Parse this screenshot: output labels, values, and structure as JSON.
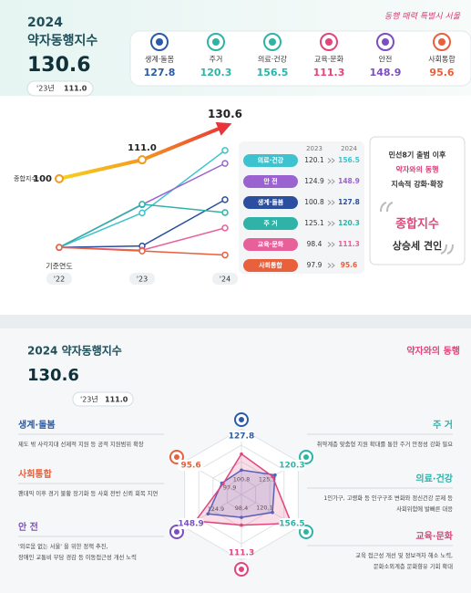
{
  "header": {
    "year": "2024",
    "title": "약자동행지수",
    "full_title": "2024 약자동행지수",
    "prev_label": "'23년",
    "slogan": "동행 매력 특별시 서울",
    "badge": "약자와의 동행",
    "cards": [
      "생계·돌봄",
      "주거",
      "의료·건강",
      "교육·문화",
      "안전",
      "사회통합"
    ]
  },
  "callout": [
    "민선8기 출범 이후",
    "약자와의 동행",
    "지속적 강화·확장",
    "종합지수",
    "상승세 견인"
  ],
  "chart_data": [
    {
      "type": "line",
      "categories": [
        "'22",
        "'23",
        "'24"
      ],
      "base_label": "기준연도",
      "table_headers": [
        "2023",
        "2024"
      ],
      "ylim": [
        90,
        175
      ],
      "y2lim": [
        50,
        135
      ],
      "series": [
        {
          "name": "종합지수:",
          "color": "#f39a1e",
          "axis": "y2",
          "values": [
            100,
            111.0,
            130.6
          ],
          "value_labels": [
            "100",
            "111.0",
            "130.6"
          ]
        },
        {
          "name": "의료·건강",
          "color": "#3cc3cf",
          "values": [
            100,
            120.1,
            156.5
          ]
        },
        {
          "name": "안 전",
          "color": "#9a63d0",
          "values": [
            100,
            124.9,
            148.9
          ]
        },
        {
          "name": "생계·돌봄",
          "color": "#2a4ea0",
          "values": [
            100,
            100.8,
            127.8
          ]
        },
        {
          "name": "주 거",
          "color": "#2fb3a8",
          "values": [
            100,
            125.1,
            120.3
          ]
        },
        {
          "name": "교육·문화",
          "color": "#e8609a",
          "values": [
            100,
            98.4,
            111.3
          ]
        },
        {
          "name": "사회통합",
          "color": "#e8603c",
          "values": [
            100,
            97.9,
            95.6
          ]
        }
      ]
    },
    {
      "type": "radar",
      "rlim": [
        60,
        170
      ],
      "categories": [
        "생계·돌봄",
        "주 거",
        "의료·건강",
        "교육·문화",
        "안 전",
        "사회통합"
      ],
      "category_colors": [
        "#2a5aa8",
        "#2fb3a8",
        "#2fb3a8",
        "#e0457b",
        "#7b4fc0",
        "#e8603c"
      ],
      "series": [
        {
          "color": "#3f67c4",
          "values": [
            100.8,
            125.1,
            120.1,
            98.4,
            124.9,
            97.9
          ]
        },
        {
          "color": "#e0457b",
          "values": [
            127.8,
            120.3,
            156.5,
            111.3,
            148.9,
            95.6
          ]
        }
      ]
    }
  ],
  "findings": [
    [
      "제도 밖 사각지대 선제적 지원 등 공적 지원범위 확장"
    ],
    [
      "취약계층 맞춤형 지원 확대를 통한 주거 안정성 강화 필요"
    ],
    [
      "1인가구, 고령화 등 인구구조 변화와 정신건강 문제 등",
      "사회위험에 발빠른 대응"
    ],
    [
      "교육 접근성 개선 및 정보격차 해소 노력,",
      "문화소외계층 문화향유 기회 확대"
    ],
    [
      "'외로움 없는 서울' 을 위한 정책 추진,",
      "장애인 교통비 부담 경감 등 이동접근성 개선 노력"
    ],
    [
      "팬데믹 이후 경기 불황 장기화 등 사회 전반 신뢰 회복 지연"
    ]
  ]
}
